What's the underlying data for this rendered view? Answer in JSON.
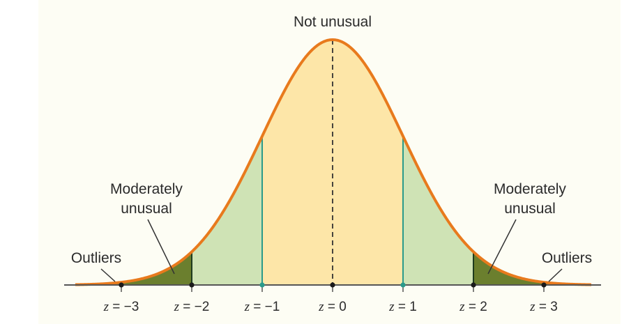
{
  "annotations": {
    "center": "Not unusual",
    "left_moderate_line1": "Moderately",
    "left_moderate_line2": "unusual",
    "right_moderate_line1": "Moderately",
    "right_moderate_line2": "unusual",
    "left_outliers": "Outliers",
    "right_outliers": "Outliers"
  },
  "ticks": [
    {
      "var": "z",
      "text": " = −3"
    },
    {
      "var": "z",
      "text": " = −2"
    },
    {
      "var": "z",
      "text": " = −1"
    },
    {
      "var": "z",
      "text": " = 0"
    },
    {
      "var": "z",
      "text": " = 1"
    },
    {
      "var": "z",
      "text": " = 2"
    },
    {
      "var": "z",
      "text": " = 3"
    }
  ],
  "colors": {
    "background": "#fdfdf4",
    "curve": "#e87a1d",
    "center_region": "#fde6a8",
    "moderate_region": "#cfe3b5",
    "outlier_region": "#6b7f2e",
    "one_sigma_line": "#2a9a8a",
    "two_sigma_line": "#1e3b1e",
    "axis": "#555555",
    "dashed_mean_line": "#333333"
  }
}
